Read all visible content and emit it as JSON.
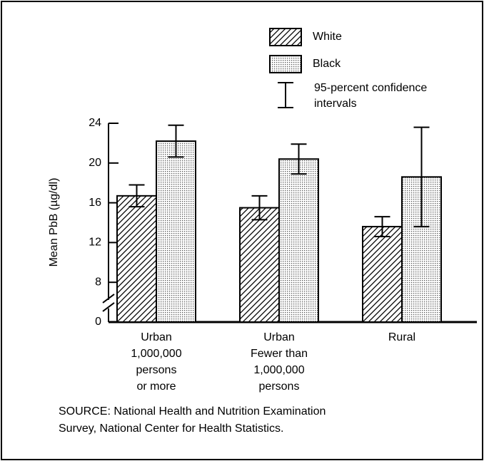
{
  "chart_data": {
    "type": "bar",
    "y_label": "Mean PbB (µg/dl)",
    "categories": [
      [
        "Urban",
        "1,000,000",
        "persons",
        "or more"
      ],
      [
        "Urban",
        "Fewer than",
        "1,000,000",
        "persons"
      ],
      [
        "Rural"
      ]
    ],
    "series": [
      {
        "name": "White",
        "color": "#000000",
        "pattern": "hatch",
        "values": [
          16.7,
          15.5,
          13.6
        ],
        "errors": [
          1.1,
          1.2,
          1.0
        ]
      },
      {
        "name": "Black",
        "color": "#000000",
        "pattern": "dots",
        "values": [
          22.2,
          20.4,
          18.6
        ],
        "errors": [
          1.6,
          1.5,
          5.0
        ]
      }
    ],
    "error_legend": [
      "95-percent confidence",
      "intervals"
    ],
    "ylim": [
      0,
      24
    ],
    "yticks": [
      0,
      8,
      12,
      16,
      20,
      24
    ],
    "axis_break": true,
    "source": [
      "SOURCE:  National Health and Nutrition Examination",
      "Survey, National Center for Health Statistics."
    ]
  }
}
